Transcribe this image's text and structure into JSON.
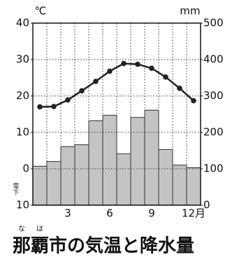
{
  "chart_data": {
    "type": "combo",
    "title": "那覇市の気温と降水量",
    "title_ruby": [
      "な",
      "は"
    ],
    "y_label": "℃",
    "y2_label": "mm",
    "annotation": "零下",
    "categories": [
      null,
      null,
      "3",
      null,
      null,
      "6",
      null,
      null,
      "9",
      null,
      null,
      "12月"
    ],
    "series": [
      {
        "type": "bar",
        "axis": "y2",
        "color": "#c4c4c4",
        "values": [
          107,
          120,
          161,
          166,
          232,
          247,
          141,
          241,
          261,
          153,
          110,
          103
        ]
      },
      {
        "type": "line",
        "axis": "y",
        "color": "#222222",
        "values": [
          17.0,
          17.1,
          18.9,
          21.4,
          24.0,
          26.8,
          28.9,
          28.7,
          27.6,
          25.2,
          22.1,
          18.7
        ]
      }
    ],
    "ylim": [
      -10,
      40
    ],
    "yticks": [
      {
        "value": -10,
        "label": "10"
      },
      0,
      10,
      20,
      30,
      40
    ],
    "y2lim": [
      0,
      500
    ],
    "y2ticks": [
      0,
      100,
      200,
      300,
      400,
      500
    ],
    "grid": true
  }
}
